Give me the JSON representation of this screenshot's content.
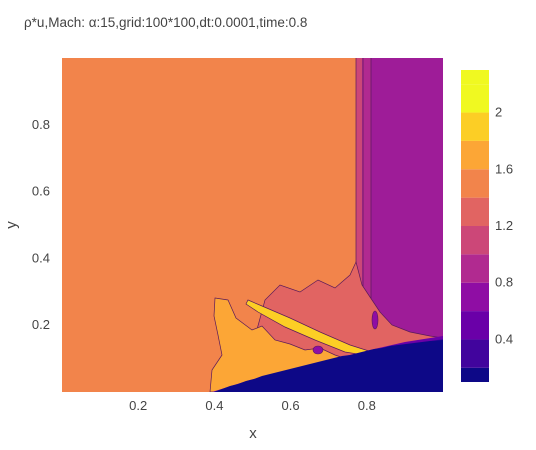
{
  "chart_data": {
    "type": "heatmap",
    "subtype": "filled-contour",
    "title": "ρ*u,Mach: α:15,grid:100*100,dt:0.0001,time:0.8",
    "xlabel": "x",
    "ylabel": "y",
    "xlim": [
      0,
      1
    ],
    "ylim": [
      0,
      1
    ],
    "x_ticks": [
      "0.2",
      "0.4",
      "0.6",
      "0.8"
    ],
    "x_tick_values": [
      0.2,
      0.4,
      0.6,
      0.8
    ],
    "y_ticks": [
      "0.2",
      "0.4",
      "0.6",
      "0.8"
    ],
    "y_tick_values": [
      0.2,
      0.4,
      0.6,
      0.8
    ],
    "grid": false,
    "colorscale": "plasma",
    "colorbar": {
      "range": [
        0.1,
        2.3
      ],
      "ticks": [
        "0.4",
        "0.8",
        "1.2",
        "1.6",
        "2"
      ],
      "tick_values": [
        0.4,
        0.8,
        1.2,
        1.6,
        2.0
      ],
      "levels": [
        0.1,
        0.2,
        0.4,
        0.6,
        0.8,
        1.0,
        1.2,
        1.4,
        1.6,
        1.8,
        2.0,
        2.2,
        2.3
      ],
      "colors": [
        "#0d0887",
        "#41049d",
        "#6a00a8",
        "#8f0da4",
        "#b12a90",
        "#cc4778",
        "#e16462",
        "#f2844b",
        "#fca636",
        "#fcce25",
        "#f0f921"
      ]
    },
    "regions": {
      "freestream": {
        "value": 1.7,
        "color": "#f2844b"
      },
      "post_shock": {
        "value": 0.9,
        "color": "#9e1c98"
      },
      "wedge": {
        "value": 0.1,
        "color": "#0d0887"
      },
      "compression_band": {
        "value": 2.05,
        "color": "#fca636"
      }
    }
  }
}
